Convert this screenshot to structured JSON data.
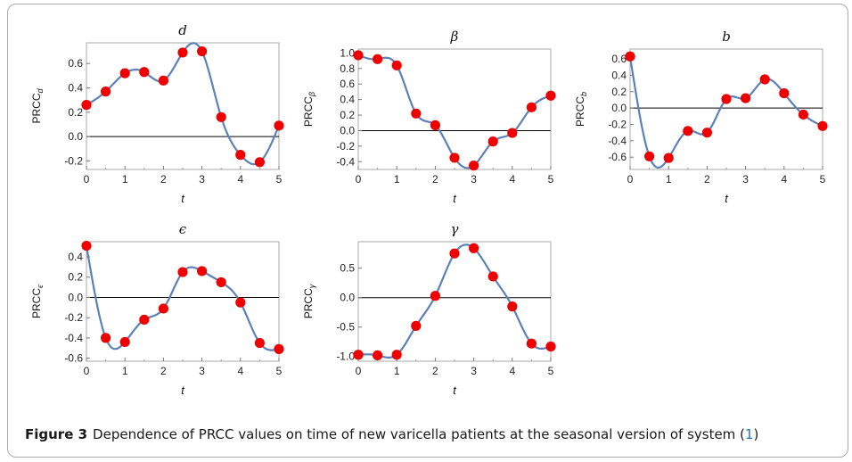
{
  "caption": {
    "label": "Figure 3",
    "text": "Dependence of PRCC values on time of new varicella patients at the seasonal version of system (",
    "ref": "1",
    "close": ")"
  },
  "colors": {
    "curve": "#5b81b8",
    "point": "#ee0000",
    "axis": "#000000",
    "frame": "#a9a9a9"
  },
  "chart_data": [
    {
      "type": "line",
      "title": "d",
      "ylabel": "PRCC",
      "ylabel_sub": "d",
      "xlabel": "t",
      "xlim": [
        0,
        5
      ],
      "ylim": [
        -0.27,
        0.77
      ],
      "xticks": [
        0,
        1,
        2,
        3,
        4,
        5
      ],
      "yticks": [
        -0.2,
        0.0,
        0.2,
        0.4,
        0.6
      ],
      "ytick_labels": [
        "-0.2",
        "0.0",
        "0.2",
        "0.4",
        "0.6"
      ],
      "x": [
        0,
        0.5,
        1,
        1.5,
        2,
        2.5,
        3,
        3.5,
        4,
        4.5,
        5
      ],
      "y": [
        0.26,
        0.37,
        0.52,
        0.53,
        0.46,
        0.69,
        0.7,
        0.16,
        -0.15,
        -0.21,
        0.09
      ]
    },
    {
      "type": "line",
      "title": "β",
      "ylabel": "PRCC",
      "ylabel_sub": "β",
      "xlabel": "t",
      "xlim": [
        0,
        5
      ],
      "ylim": [
        -0.5,
        1.05
      ],
      "xticks": [
        0,
        1,
        2,
        3,
        4,
        5
      ],
      "yticks": [
        -0.4,
        -0.2,
        0.0,
        0.2,
        0.4,
        0.6,
        0.8,
        1.0
      ],
      "ytick_labels": [
        "-0.4",
        "-0.2",
        "0.0",
        "0.2",
        "0.4",
        "0.6",
        "0.8",
        "1.0"
      ],
      "x": [
        0,
        0.5,
        1,
        1.5,
        2,
        2.5,
        3,
        3.5,
        4,
        4.5,
        5
      ],
      "y": [
        0.97,
        0.92,
        0.84,
        0.22,
        0.07,
        -0.35,
        -0.45,
        -0.14,
        -0.03,
        0.3,
        0.45
      ]
    },
    {
      "type": "line",
      "title": "b",
      "ylabel": "PRCC",
      "ylabel_sub": "b",
      "xlabel": "t",
      "xlim": [
        0,
        5
      ],
      "ylim": [
        -0.75,
        0.72
      ],
      "xticks": [
        0,
        1,
        2,
        3,
        4,
        5
      ],
      "yticks": [
        -0.6,
        -0.4,
        -0.2,
        0.0,
        0.2,
        0.4,
        0.6
      ],
      "ytick_labels": [
        "-0.6",
        "-0.4",
        "-0.2",
        "0.0",
        "0.2",
        "0.4",
        "0.6"
      ],
      "x": [
        0,
        0.5,
        1,
        1.5,
        2,
        2.5,
        3,
        3.5,
        4,
        4.5,
        5
      ],
      "y": [
        0.63,
        -0.59,
        -0.61,
        -0.28,
        -0.3,
        0.11,
        0.12,
        0.35,
        0.18,
        -0.08,
        -0.22
      ]
    },
    {
      "type": "line",
      "title": "ϵ",
      "ylabel": "PRCC",
      "ylabel_sub": "ϵ",
      "xlabel": "t",
      "xlim": [
        0,
        5
      ],
      "ylim": [
        -0.63,
        0.55
      ],
      "xticks": [
        0,
        1,
        2,
        3,
        4,
        5
      ],
      "yticks": [
        -0.6,
        -0.4,
        -0.2,
        0.0,
        0.2,
        0.4
      ],
      "ytick_labels": [
        "-0.6",
        "-0.4",
        "-0.2",
        "0.0",
        "0.2",
        "0.4"
      ],
      "x": [
        0,
        0.5,
        1,
        1.5,
        2,
        2.5,
        3,
        3.5,
        4,
        4.5,
        5
      ],
      "y": [
        0.51,
        -0.4,
        -0.44,
        -0.22,
        -0.11,
        0.25,
        0.26,
        0.15,
        -0.05,
        -0.45,
        -0.51
      ]
    },
    {
      "type": "line",
      "title": "γ",
      "ylabel": "PRCC",
      "ylabel_sub": "γ",
      "xlabel": "t",
      "xlim": [
        0,
        5
      ],
      "ylim": [
        -1.08,
        0.95
      ],
      "xticks": [
        0,
        1,
        2,
        3,
        4,
        5
      ],
      "yticks": [
        -1.0,
        -0.5,
        0.0,
        0.5
      ],
      "ytick_labels": [
        "-1.0",
        "-0.5",
        "0.0",
        "0.5"
      ],
      "x": [
        0,
        0.5,
        1,
        1.5,
        2,
        2.5,
        3,
        3.5,
        4,
        4.5,
        5
      ],
      "y": [
        -0.97,
        -0.98,
        -0.97,
        -0.48,
        0.03,
        0.75,
        0.84,
        0.36,
        -0.15,
        -0.78,
        -0.83
      ]
    }
  ]
}
